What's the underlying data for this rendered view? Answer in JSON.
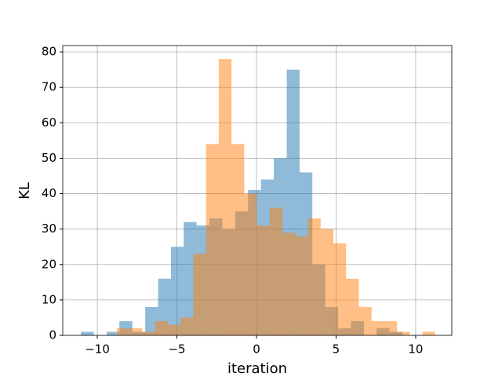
{
  "chart_data": {
    "type": "histogram",
    "xlabel": "iteration",
    "ylabel": "KL",
    "xlim": [
      -12.17,
      12.27
    ],
    "ylim": [
      0,
      81.8
    ],
    "xticks": [
      {
        "value": -10,
        "label": "−10"
      },
      {
        "value": -5,
        "label": "−5"
      },
      0,
      5,
      10
    ],
    "yticks": [
      0,
      10,
      20,
      30,
      40,
      50,
      60,
      70,
      80
    ],
    "grid": true,
    "alpha": 0.5,
    "series": [
      {
        "color": "#1f77b4",
        "bins": [
          -11.03,
          -10.22,
          -9.41,
          -8.61,
          -7.8,
          -6.99,
          -6.18,
          -5.37,
          -4.57,
          -3.76,
          -2.95,
          -2.14,
          -1.33,
          -0.53,
          0.28,
          1.09,
          1.9,
          2.71,
          3.51,
          4.32,
          5.13,
          5.94,
          6.75,
          7.55,
          8.36,
          9.17
        ],
        "values": [
          1,
          0,
          1,
          4,
          1,
          8,
          16,
          25,
          32,
          31,
          33,
          30,
          35,
          41,
          44,
          50,
          75,
          46,
          20,
          8,
          2,
          4,
          0,
          2,
          1
        ]
      },
      {
        "color": "#ff7f0e",
        "bins": [
          -8.77,
          -7.97,
          -7.17,
          -6.37,
          -5.57,
          -4.77,
          -3.97,
          -3.17,
          -2.37,
          -1.57,
          -0.77,
          0.03,
          0.83,
          1.63,
          2.43,
          3.23,
          4.03,
          4.83,
          5.63,
          6.43,
          7.23,
          8.03,
          8.83,
          9.63,
          10.43,
          11.23
        ],
        "values": [
          2,
          2,
          1,
          4,
          3,
          5,
          23,
          54,
          78,
          54,
          40,
          31,
          36,
          29,
          28,
          33,
          30,
          26,
          16,
          8,
          4,
          4,
          1,
          0,
          1
        ]
      }
    ]
  }
}
